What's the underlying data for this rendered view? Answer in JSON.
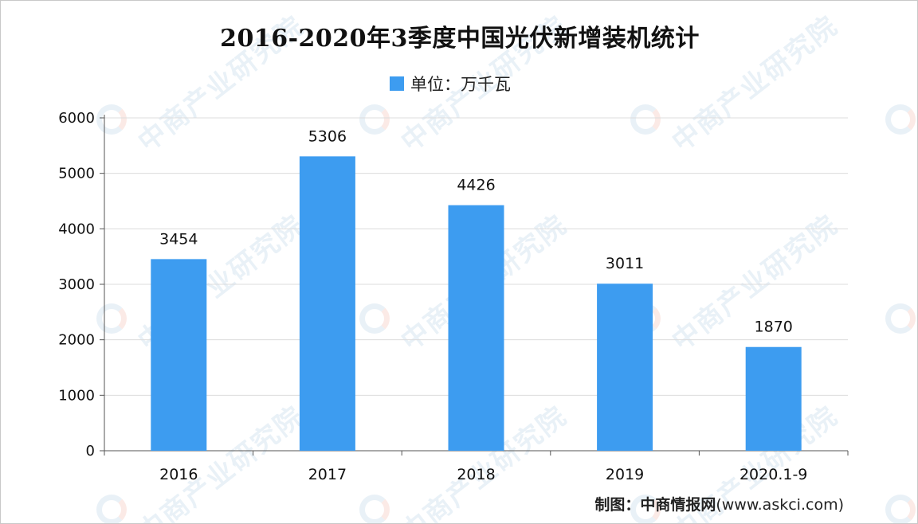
{
  "chart_data": {
    "type": "bar",
    "title": "2016-2020年3季度中国光伏新增装机统计",
    "legend": "单位：万千瓦",
    "categories": [
      "2016",
      "2017",
      "2018",
      "2019",
      "2020.1-9"
    ],
    "series": [
      {
        "name": "单位：万千瓦",
        "values": [
          3454,
          5306,
          4426,
          3011,
          1870
        ]
      }
    ],
    "ylim": [
      0,
      6000
    ],
    "yticks": [
      0,
      1000,
      2000,
      3000,
      4000,
      5000,
      6000
    ],
    "ytick_labels": [
      "0",
      "1000",
      "2000",
      "3000",
      "4000",
      "5000",
      "6000"
    ],
    "data_labels": [
      "3454",
      "5306",
      "4426",
      "3011",
      "1870"
    ],
    "grid": true,
    "legend_position": "top-center",
    "bar_color": "#3d9cf0"
  },
  "source": {
    "label": "制图：中商情报网",
    "url": "(www.askci.com)"
  },
  "watermark": "中商产业研究院"
}
